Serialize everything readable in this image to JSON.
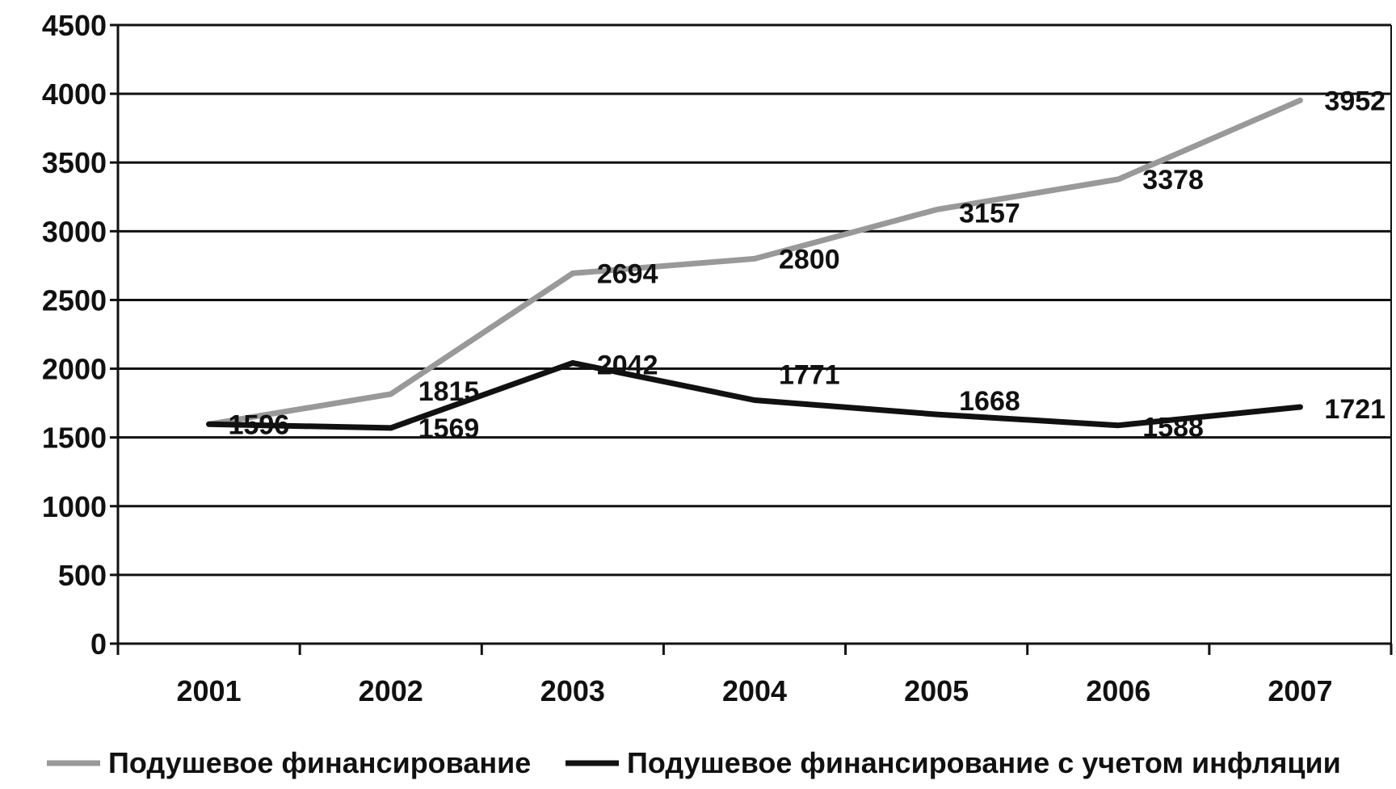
{
  "chart_data": {
    "type": "line",
    "title": "",
    "xlabel": "",
    "ylabel": "",
    "categories": [
      "2001",
      "2002",
      "2003",
      "2004",
      "2005",
      "2006",
      "2007"
    ],
    "ylim": [
      0,
      4500
    ],
    "yticks": [
      0,
      500,
      1000,
      1500,
      2000,
      2500,
      3000,
      3500,
      4000,
      4500
    ],
    "grid": true,
    "legend_position": "bottom",
    "series": [
      {
        "name": "Подушевое финансирование",
        "color": "#999999",
        "values": [
          1596,
          1815,
          2694,
          2800,
          3157,
          3378,
          3952
        ],
        "labels": [
          "1596",
          "1815",
          "2694",
          "2800",
          "3157",
          "3378",
          "3952"
        ]
      },
      {
        "name": "Подушевое финансирование с учетом инфляции",
        "color": "#111111",
        "values": [
          1596,
          1569,
          2042,
          1771,
          1668,
          1588,
          1721
        ],
        "labels": [
          "1596",
          "1569",
          "2042",
          "1771",
          "1668",
          "1588",
          "1721"
        ]
      }
    ]
  }
}
